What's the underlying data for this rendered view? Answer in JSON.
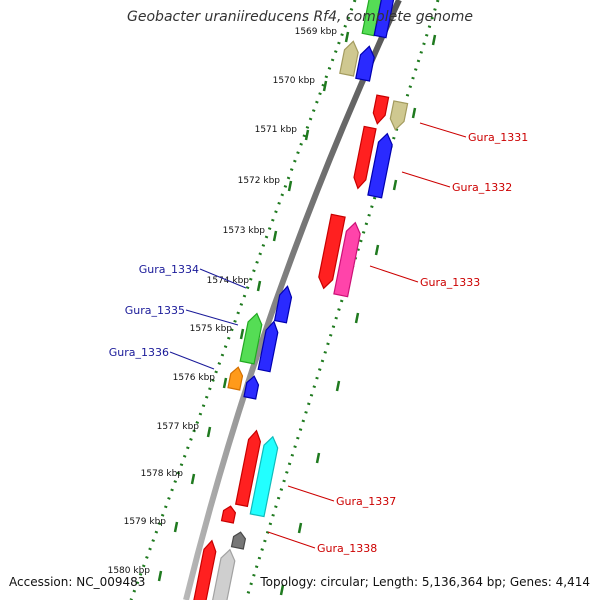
{
  "title": "Geobacter uraniireducens Rf4, complete genome",
  "footer": {
    "accession": "Accession: NC_009483",
    "summary": "Topology: circular; Length: 5,136,364 bp; Genes: 4,414"
  },
  "colors": {
    "backbone": "#8a8a8a",
    "ticks": "#1f7a1f",
    "label_forward": "#cc0000",
    "label_reverse": "#1a1a99"
  },
  "kbp_labels": [
    "1569 kbp",
    "1570 kbp",
    "1571 kbp",
    "1572 kbp",
    "1573 kbp",
    "1574 kbp",
    "1575 kbp",
    "1576 kbp",
    "1577 kbp",
    "1578 kbp",
    "1579 kbp",
    "1580 kbp"
  ],
  "gene_labels": {
    "forward": [
      "Gura_1331",
      "Gura_1332",
      "Gura_1333",
      "Gura_1337",
      "Gura_1338"
    ],
    "reverse": [
      "Gura_1334",
      "Gura_1335",
      "Gura_1336"
    ]
  },
  "feature_colors": [
    "red",
    "blue",
    "green",
    "khaki",
    "magenta",
    "orange",
    "cyan",
    "gray",
    "silver"
  ]
}
